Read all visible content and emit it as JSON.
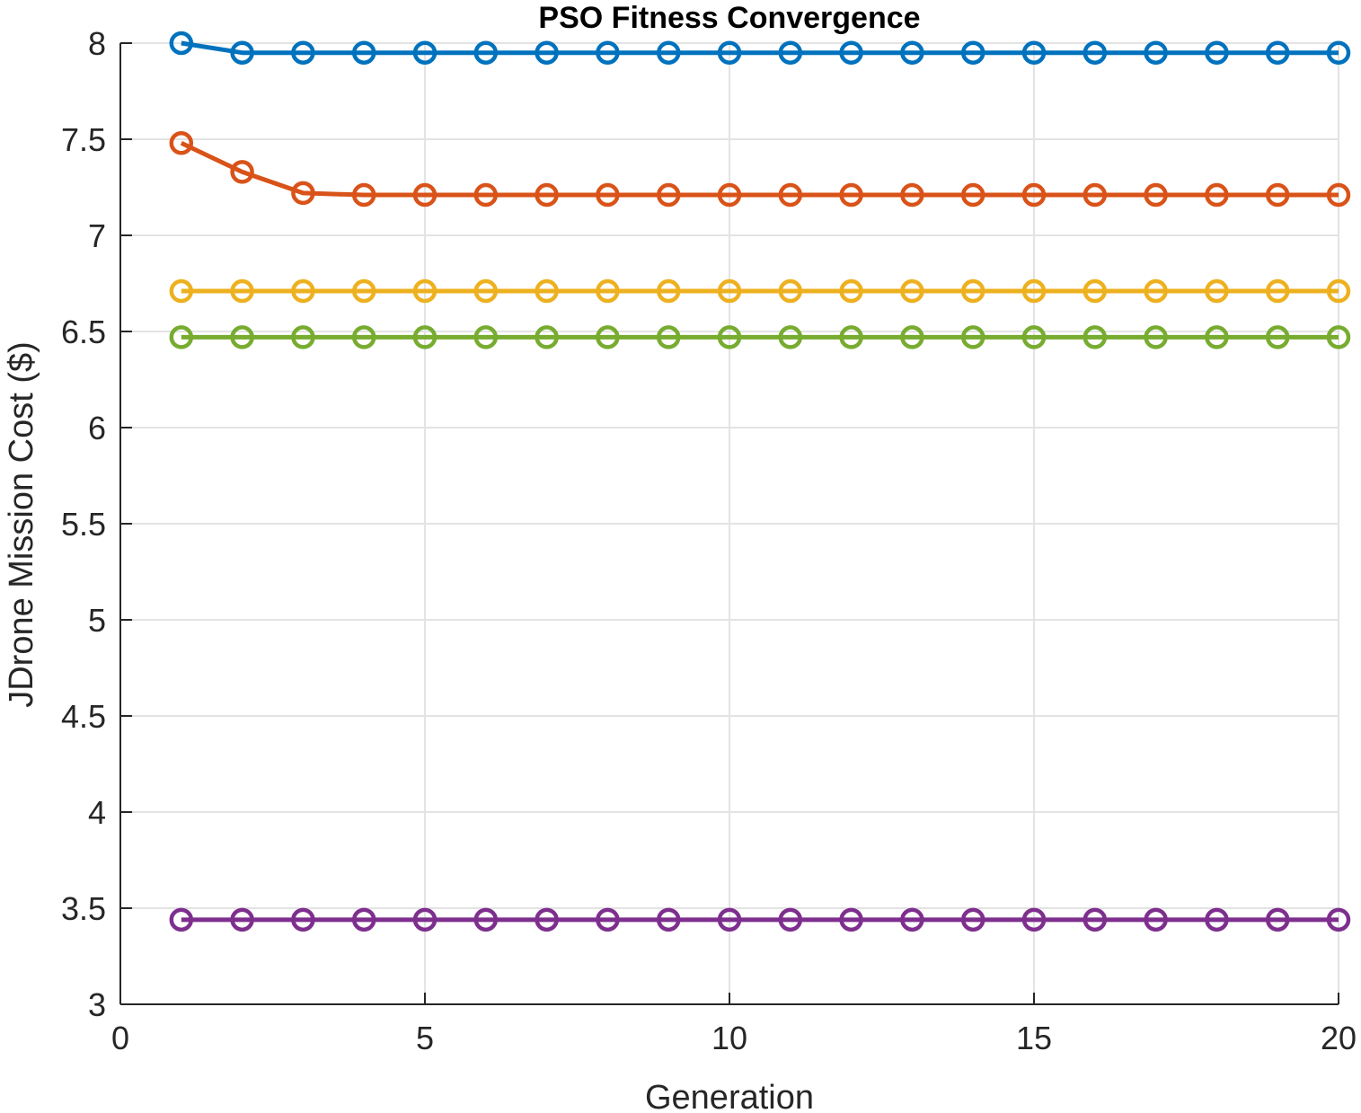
{
  "chart_data": {
    "type": "line",
    "title": "PSO Fitness Convergence",
    "xlabel": "Generation",
    "ylabel": "JDrone Mission Cost ($)",
    "xlim": [
      0,
      20
    ],
    "ylim": [
      3,
      8
    ],
    "xticks": [
      0,
      5,
      10,
      15,
      20
    ],
    "yticks": [
      3,
      3.5,
      4,
      4.5,
      5,
      5.5,
      6,
      6.5,
      7,
      7.5,
      8
    ],
    "xtick_labels": [
      "0",
      "5",
      "10",
      "15",
      "20"
    ],
    "ytick_labels": [
      "3",
      "3.5",
      "4",
      "4.5",
      "5",
      "5.5",
      "6",
      "6.5",
      "7",
      "7.5",
      "8"
    ],
    "grid": true,
    "marker": "circle",
    "x": [
      1,
      2,
      3,
      4,
      5,
      6,
      7,
      8,
      9,
      10,
      11,
      12,
      13,
      14,
      15,
      16,
      17,
      18,
      19,
      20
    ],
    "series": [
      {
        "color": "#0072BD",
        "values": [
          8.0,
          7.95,
          7.95,
          7.95,
          7.95,
          7.95,
          7.95,
          7.95,
          7.95,
          7.95,
          7.95,
          7.95,
          7.95,
          7.95,
          7.95,
          7.95,
          7.95,
          7.95,
          7.95,
          7.95
        ]
      },
      {
        "color": "#D95319",
        "values": [
          7.48,
          7.33,
          7.22,
          7.21,
          7.21,
          7.21,
          7.21,
          7.21,
          7.21,
          7.21,
          7.21,
          7.21,
          7.21,
          7.21,
          7.21,
          7.21,
          7.21,
          7.21,
          7.21,
          7.21
        ]
      },
      {
        "color": "#EDB120",
        "values": [
          6.71,
          6.71,
          6.71,
          6.71,
          6.71,
          6.71,
          6.71,
          6.71,
          6.71,
          6.71,
          6.71,
          6.71,
          6.71,
          6.71,
          6.71,
          6.71,
          6.71,
          6.71,
          6.71,
          6.71
        ]
      },
      {
        "color": "#77AC30",
        "values": [
          6.47,
          6.47,
          6.47,
          6.47,
          6.47,
          6.47,
          6.47,
          6.47,
          6.47,
          6.47,
          6.47,
          6.47,
          6.47,
          6.47,
          6.47,
          6.47,
          6.47,
          6.47,
          6.47,
          6.47
        ]
      },
      {
        "color": "#7E2F8E",
        "values": [
          3.44,
          3.44,
          3.44,
          3.44,
          3.44,
          3.44,
          3.44,
          3.44,
          3.44,
          3.44,
          3.44,
          3.44,
          3.44,
          3.44,
          3.44,
          3.44,
          3.44,
          3.44,
          3.44,
          3.44
        ]
      }
    ]
  }
}
